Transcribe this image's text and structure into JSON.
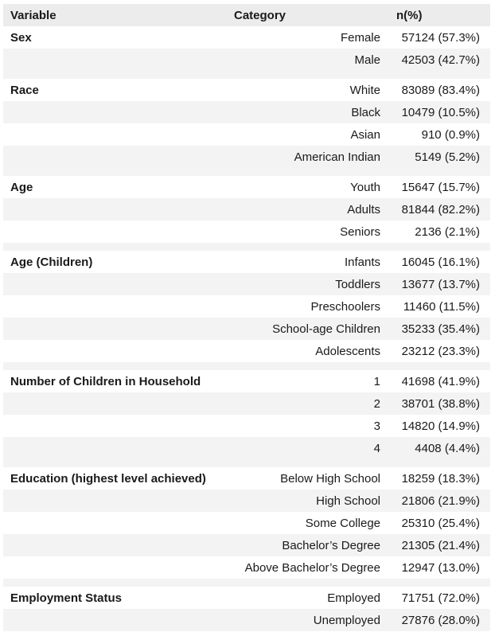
{
  "table": {
    "headers": {
      "variable": "Variable",
      "category": "Category",
      "n": "n(%)"
    },
    "groups": [
      {
        "variable": "Sex",
        "rows": [
          {
            "category": "Female",
            "n": "57124 (57.3%)"
          },
          {
            "category": "Male",
            "n": "42503 (42.7%)"
          }
        ]
      },
      {
        "variable": "Race",
        "rows": [
          {
            "category": "White",
            "n": "83089 (83.4%)"
          },
          {
            "category": "Black",
            "n": "10479 (10.5%)"
          },
          {
            "category": "Asian",
            "n": "910 (0.9%)"
          },
          {
            "category": "American Indian",
            "n": "5149 (5.2%)"
          }
        ]
      },
      {
        "variable": "Age",
        "rows": [
          {
            "category": "Youth",
            "n": "15647 (15.7%)"
          },
          {
            "category": "Adults",
            "n": "81844 (82.2%)"
          },
          {
            "category": "Seniors",
            "n": "2136 (2.1%)"
          }
        ]
      },
      {
        "variable": "Age (Children)",
        "rows": [
          {
            "category": "Infants",
            "n": "16045 (16.1%)"
          },
          {
            "category": "Toddlers",
            "n": "13677 (13.7%)"
          },
          {
            "category": "Preschoolers",
            "n": "11460 (11.5%)"
          },
          {
            "category": "School-age Children",
            "n": "35233 (35.4%)"
          },
          {
            "category": "Adolescents",
            "n": "23212 (23.3%)"
          }
        ]
      },
      {
        "variable": "Number of Children in Household",
        "rows": [
          {
            "category": "1",
            "n": "41698 (41.9%)"
          },
          {
            "category": "2",
            "n": "38701 (38.8%)"
          },
          {
            "category": "3",
            "n": "14820 (14.9%)"
          },
          {
            "category": "4",
            "n": "4408 (4.4%)"
          }
        ]
      },
      {
        "variable": "Education (highest level achieved)",
        "rows": [
          {
            "category": "Below High School",
            "n": "18259 (18.3%)"
          },
          {
            "category": "High School",
            "n": "21806 (21.9%)"
          },
          {
            "category": "Some College",
            "n": "25310 (25.4%)"
          },
          {
            "category": "Bachelor’s Degree",
            "n": "21305 (21.4%)"
          },
          {
            "category": "Above Bachelor’s Degree",
            "n": "12947 (13.0%)"
          }
        ]
      },
      {
        "variable": "Employment Status",
        "rows": [
          {
            "category": "Employed",
            "n": "71751 (72.0%)"
          },
          {
            "category": "Unemployed",
            "n": "27876 (28.0%)"
          }
        ]
      }
    ]
  }
}
